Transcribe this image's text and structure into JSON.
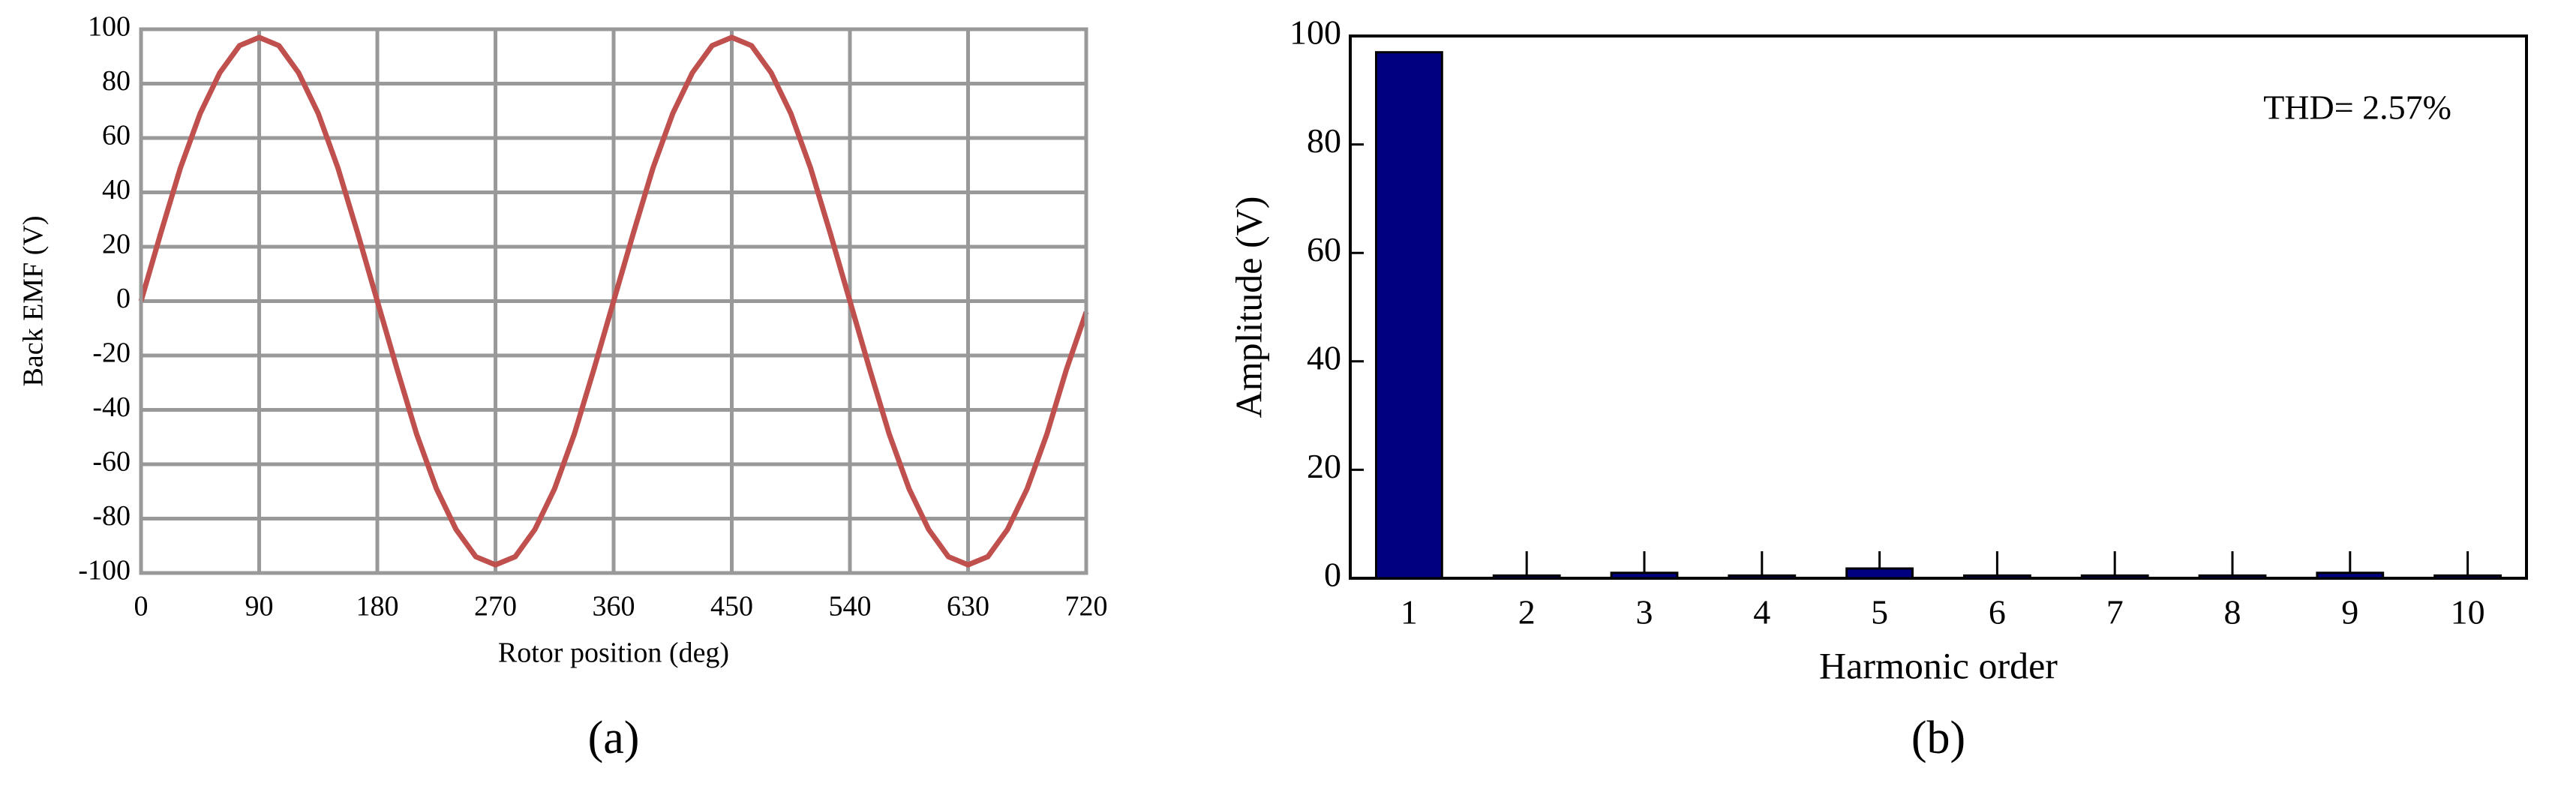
{
  "chart_data": [
    {
      "type": "line",
      "caption": "(a)",
      "xlabel": "Rotor position (deg)",
      "ylabel": "Back EMF (V)",
      "x": [
        0,
        15,
        30,
        45,
        60,
        75,
        90,
        105,
        120,
        135,
        150,
        165,
        180,
        195,
        210,
        225,
        240,
        255,
        270,
        285,
        300,
        315,
        330,
        345,
        360,
        375,
        390,
        405,
        420,
        435,
        450,
        465,
        480,
        495,
        510,
        525,
        540,
        555,
        570,
        585,
        600,
        615,
        630,
        645,
        660,
        675,
        690,
        705,
        720
      ],
      "series": [
        {
          "color": "#c0504d",
          "values": [
            0,
            25,
            49,
            69,
            84,
            94,
            97,
            94,
            84,
            69,
            49,
            25,
            0,
            -25,
            -49,
            -69,
            -84,
            -94,
            -97,
            -94,
            -84,
            -69,
            -49,
            -25,
            0,
            25,
            49,
            69,
            84,
            94,
            97,
            94,
            84,
            69,
            49,
            25,
            0,
            -25,
            -49,
            -69,
            -84,
            -94,
            -97,
            -94,
            -84,
            -69,
            -49,
            -25,
            -4
          ]
        }
      ],
      "xlim": [
        0,
        720
      ],
      "xticks": [
        0,
        90,
        180,
        270,
        360,
        450,
        540,
        630,
        720
      ],
      "ylim": [
        -100,
        100
      ],
      "yticks": [
        -100,
        -80,
        -60,
        -40,
        -20,
        0,
        20,
        40,
        60,
        80,
        100
      ],
      "grid": true
    },
    {
      "type": "bar",
      "caption": "(b)",
      "xlabel": "Harmonic order",
      "ylabel": "Amplitude (V)",
      "annotation": "THD= 2.57%",
      "categories": [
        "1",
        "2",
        "3",
        "4",
        "5",
        "6",
        "7",
        "8",
        "9",
        "10"
      ],
      "values": [
        97,
        0.5,
        1,
        0.5,
        1.8,
        0.5,
        0.5,
        0.5,
        1,
        0.5
      ],
      "color": "#000080",
      "ylim": [
        0,
        100
      ],
      "yticks": [
        0,
        20,
        40,
        60,
        80,
        100
      ],
      "grid": false
    }
  ]
}
